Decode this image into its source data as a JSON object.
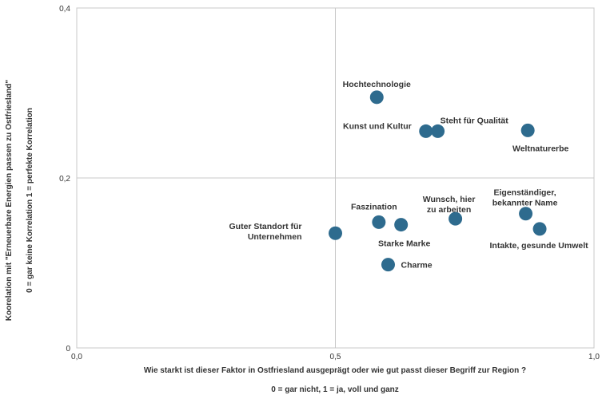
{
  "chart_data": {
    "type": "scatter",
    "title": "",
    "xlabel": "Wie starkt ist dieser Faktor in Ostfriesland ausgeprägt oder wie gut passt dieser Begriff zur Region ?",
    "xlabel_note": "0 = gar nicht, 1 = ja, voll und ganz",
    "ylabel_lines": [
      "Koorelation mit     \"Erneuerbare Energien passen  zu Ostfriesland\"",
      "0 = gar keine Korrelation     1 = perfekte Korrelation"
    ],
    "xlim": [
      0,
      1
    ],
    "ylim": [
      0,
      0.4
    ],
    "x_ticks": [
      "0,0",
      "0,5",
      "1,0"
    ],
    "y_ticks": [
      "0",
      "0,2",
      "0,4"
    ],
    "grid": true,
    "marker_color": "#2e6b8e",
    "points": [
      {
        "label_lines": [
          "Hochtechnologie"
        ],
        "x": 0.58,
        "y": 0.295
      },
      {
        "label_lines": [
          "Kunst und Kultur"
        ],
        "x": 0.675,
        "y": 0.255
      },
      {
        "label_lines": [
          "Steht für Qualität"
        ],
        "x": 0.698,
        "y": 0.255
      },
      {
        "label_lines": [
          "Weltnaturerbe"
        ],
        "x": 0.872,
        "y": 0.256
      },
      {
        "label_lines": [
          "Eigenständiger,",
          "bekannter Name"
        ],
        "x": 0.868,
        "y": 0.158
      },
      {
        "label_lines": [
          "Intakte, gesunde Umwelt"
        ],
        "x": 0.895,
        "y": 0.14
      },
      {
        "label_lines": [
          "Wunsch, hier",
          "zu arbeiten"
        ],
        "x": 0.732,
        "y": 0.152
      },
      {
        "label_lines": [
          "Faszination"
        ],
        "x": 0.584,
        "y": 0.148
      },
      {
        "label_lines": [
          "Starke Marke"
        ],
        "x": 0.627,
        "y": 0.145
      },
      {
        "label_lines": [
          "Guter Standort für",
          "Unternehmen"
        ],
        "x": 0.5,
        "y": 0.135
      },
      {
        "label_lines": [
          "Charme"
        ],
        "x": 0.602,
        "y": 0.098
      }
    ]
  }
}
